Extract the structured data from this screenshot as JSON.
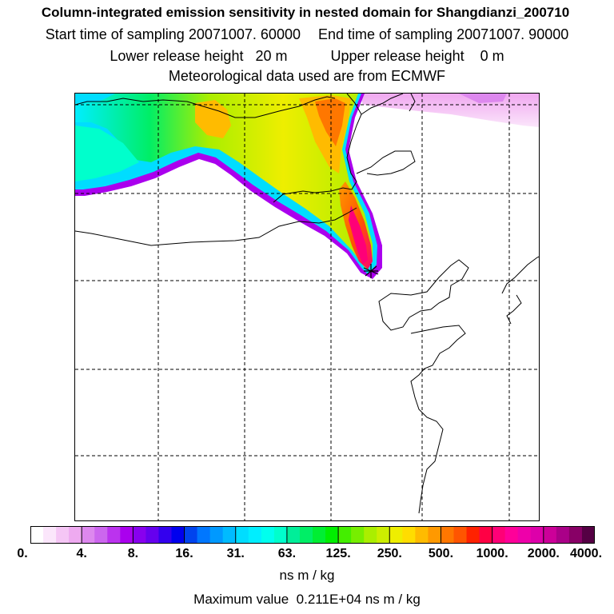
{
  "header": {
    "title": "Column-integrated emission sensitivity in nested domain for Shangdianzi_200710",
    "start_label": "Start time of sampling",
    "start_value": "20071007. 60000",
    "end_label": "End time of sampling",
    "end_value": "20071007. 90000",
    "lower_label": "Lower release height",
    "lower_value": "20 m",
    "upper_label": "Upper release height",
    "upper_value": "0 m",
    "met_line": "Meteorological data used are from ECMWF"
  },
  "colorbar": {
    "ticks": [
      "0.",
      "4.",
      "8.",
      "16.",
      "31.",
      "63.",
      "125.",
      "250.",
      "500.",
      "1000.",
      "2000.",
      "4000."
    ],
    "colors": [
      "#ffffff",
      "#fbe6fb",
      "#f5c6f5",
      "#eeaaf0",
      "#dd88ee",
      "#cc66ee",
      "#bb33ee",
      "#aa00ee",
      "#8800ee",
      "#6600ee",
      "#3300ee",
      "#0000ee",
      "#0044ee",
      "#0077ff",
      "#0099ff",
      "#00bbff",
      "#00ddff",
      "#00eeff",
      "#00ffee",
      "#00ffcc",
      "#00ee99",
      "#00ee66",
      "#00ee33",
      "#00ee00",
      "#44ee00",
      "#77ee00",
      "#aaee00",
      "#ccee00",
      "#eeee00",
      "#ffdd00",
      "#ffbb00",
      "#ff9900",
      "#ff7700",
      "#ff5500",
      "#ff2200",
      "#ff0044",
      "#ff0077",
      "#ff0099",
      "#ee00aa",
      "#dd00aa",
      "#cc0099",
      "#aa0088",
      "#880066",
      "#550044"
    ],
    "units": "ns m / kg",
    "max_label": "Maximum value",
    "max_value": "0.211E+04 ns m / kg"
  },
  "map": {
    "receptor": "Shangdianzi",
    "receptor_marker": "star-icon"
  }
}
